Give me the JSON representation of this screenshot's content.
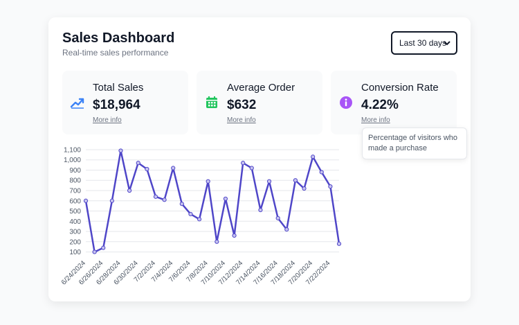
{
  "header": {
    "title": "Sales Dashboard",
    "subtitle": "Real-time sales performance"
  },
  "range_select": {
    "selected": "Last 30 days"
  },
  "metrics": [
    {
      "label": "Total Sales",
      "value": "$18,964",
      "link": "More info",
      "icon": "trending-up-icon",
      "color": "#3b82f6"
    },
    {
      "label": "Average Order",
      "value": "$632",
      "link": "More info",
      "icon": "calendar-icon",
      "color": "#22c55e"
    },
    {
      "label": "Conversion Rate",
      "value": "4.22%",
      "link": "More info",
      "icon": "info-icon",
      "color": "#a855f7"
    }
  ],
  "tooltip": {
    "text": "Percentage of visitors who made a purchase"
  },
  "chart_data": {
    "type": "line",
    "title": "",
    "xlabel": "",
    "ylabel": "",
    "ylim": [
      70,
      1120
    ],
    "yticks": [
      100,
      200,
      300,
      400,
      500,
      600,
      700,
      800,
      900,
      1000,
      1100
    ],
    "ytick_labels": [
      "100",
      "200",
      "300",
      "400",
      "500",
      "600",
      "700",
      "800",
      "900",
      "1,000",
      "1,100"
    ],
    "x": [
      "6/24/2024",
      "6/25/2024",
      "6/26/2024",
      "6/27/2024",
      "6/28/2024",
      "6/29/2024",
      "6/30/2024",
      "7/1/2024",
      "7/2/2024",
      "7/3/2024",
      "7/4/2024",
      "7/5/2024",
      "7/6/2024",
      "7/7/2024",
      "7/8/2024",
      "7/9/2024",
      "7/10/2024",
      "7/11/2024",
      "7/12/2024",
      "7/13/2024",
      "7/14/2024",
      "7/15/2024",
      "7/16/2024",
      "7/17/2024",
      "7/18/2024",
      "7/19/2024",
      "7/20/2024",
      "7/21/2024",
      "7/22/2024",
      "7/23/2024"
    ],
    "x_tick_labels": [
      "6/24/2024",
      "6/26/2024",
      "6/28/2024",
      "6/30/2024",
      "7/2/2024",
      "7/4/2024",
      "7/6/2024",
      "7/8/2024",
      "7/10/2024",
      "7/12/2024",
      "7/14/2024",
      "7/16/2024",
      "7/18/2024",
      "7/20/2024",
      "7/22/2024"
    ],
    "series": [
      {
        "name": "Sales",
        "color": "#4f46c8",
        "values": [
          600,
          100,
          140,
          600,
          1090,
          700,
          970,
          910,
          640,
          610,
          920,
          570,
          470,
          420,
          790,
          200,
          620,
          260,
          970,
          920,
          510,
          790,
          430,
          320,
          800,
          720,
          1030,
          880,
          740,
          180
        ]
      }
    ],
    "grid": true,
    "legend": "none"
  }
}
